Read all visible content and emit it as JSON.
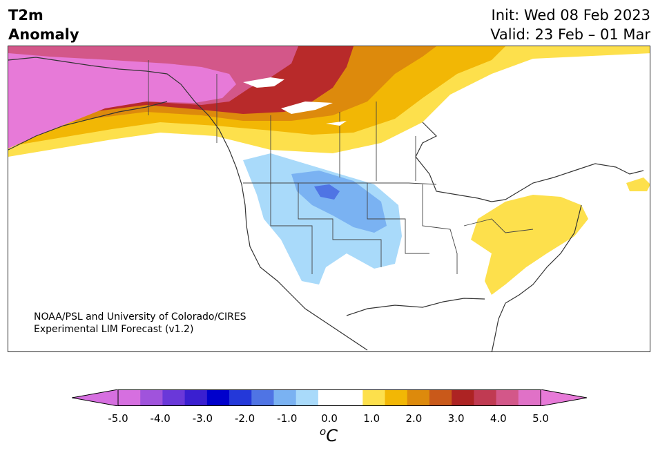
{
  "title": {
    "left_line1": "T2m",
    "left_line2": "Anomaly",
    "init": "Init: Wed 08 Feb 2023",
    "valid": "Valid: 23 Feb – 01 Mar"
  },
  "credit": {
    "line1": "NOAA/PSL and University of Colorado/CIRES",
    "line2": "Experimental LIM Forecast (v1.2)"
  },
  "colorbar": {
    "unit_base": "C",
    "unit_sup": "o",
    "ticks": [
      "-5.0",
      "-4.0",
      "-3.0",
      "-2.0",
      "-1.0",
      "0.0",
      "1.0",
      "2.0",
      "3.0",
      "4.0",
      "5.0"
    ],
    "colors": [
      "#d66fe0",
      "#a053dc",
      "#6a38d9",
      "#3a1fd0",
      "#0000cc",
      "#2438d9",
      "#4f74e4",
      "#7ab2f2",
      "#a9dafa",
      "#ffffff",
      "#ffffff",
      "#fde04c",
      "#f2b705",
      "#dd8a0c",
      "#c9591a",
      "#ad2323",
      "#c03a52",
      "#d35789",
      "#e071c7"
    ],
    "extend_low_color": "#d66fe0",
    "extend_high_color": "#e77ad8"
  },
  "colors": {
    "warm_magenta": "#e77ad8",
    "warm_pink": "#d35789",
    "warm_red": "#b82a2a",
    "warm_dark_orange": "#c9591a",
    "warm_orange": "#dd8a0c",
    "warm_gold": "#f2b705",
    "warm_yellow": "#fde04c",
    "cold_light": "#a9dafa",
    "cold_mid": "#7ab2f2",
    "cold_deep": "#4f74e4",
    "coast": "#333333"
  }
}
